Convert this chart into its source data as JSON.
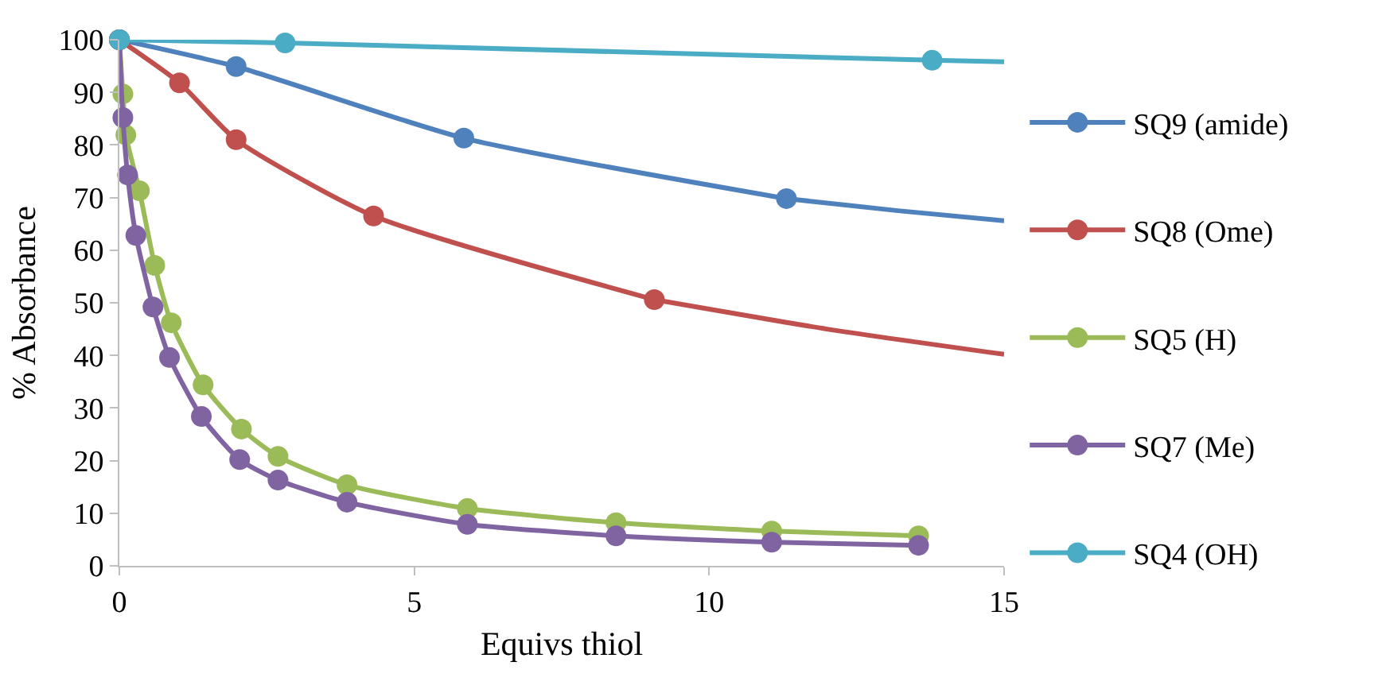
{
  "chart_data": {
    "type": "line",
    "xlabel": "Equivs thiol",
    "ylabel": "% Absorbance",
    "xlim": [
      0,
      15
    ],
    "xticks": [
      0,
      5,
      10,
      15
    ],
    "ylim": [
      0,
      100
    ],
    "yticks": [
      0,
      10,
      20,
      30,
      40,
      50,
      60,
      70,
      80,
      90,
      100
    ],
    "legend": "right",
    "marker": "circle",
    "line_style": "solid",
    "series": [
      {
        "name": "SQ9 (amide)",
        "color": "#4f81bd",
        "x": [
          0,
          1.98,
          5.84,
          11.31
        ],
        "values": [
          100,
          94.9,
          81.3,
          69.8
        ]
      },
      {
        "name": "SQ8 (Ome)",
        "color": "#c0504d",
        "x": [
          0,
          1.02,
          1.98,
          4.31,
          9.07
        ],
        "values": [
          100,
          91.8,
          81.0,
          66.5,
          50.6
        ]
      },
      {
        "name": "SQ5 (H)",
        "color": "#9bbb59",
        "x": [
          0,
          0.06,
          0.11,
          0.34,
          0.6,
          0.88,
          1.42,
          2.07,
          2.69,
          3.86,
          5.9,
          8.42,
          11.06,
          13.55
        ],
        "values": [
          100,
          89.7,
          81.9,
          71.3,
          57.1,
          46.2,
          34.4,
          26.0,
          20.8,
          15.4,
          10.9,
          8.2,
          6.6,
          5.7
        ]
      },
      {
        "name": "SQ7 (Me)",
        "color": "#8064a2",
        "x": [
          0,
          0.06,
          0.14,
          0.28,
          0.57,
          0.85,
          1.39,
          2.04,
          2.69,
          3.86,
          5.9,
          8.42,
          11.06,
          13.55
        ],
        "values": [
          100,
          85.2,
          74.3,
          62.8,
          49.2,
          39.6,
          28.4,
          20.2,
          16.3,
          12.1,
          7.9,
          5.7,
          4.5,
          3.9
        ]
      },
      {
        "name": "SQ4 (OH)",
        "color": "#4bacc6",
        "x": [
          0,
          2.81,
          13.78
        ],
        "values": [
          100,
          99.4,
          96.1
        ]
      },
      {
        "color": "#4f81bd",
        "marker": "none",
        "x": [
          11.31,
          13.2,
          15
        ],
        "values": [
          69.8,
          67.5,
          65.6
        ]
      },
      {
        "color": "#c0504d",
        "marker": "none",
        "x": [
          9.07,
          12,
          15
        ],
        "values": [
          50.6,
          45.0,
          40.2
        ]
      },
      {
        "color": "#4bacc6",
        "marker": "none",
        "x": [
          13.78,
          15
        ],
        "values": [
          96.1,
          95.8
        ]
      }
    ]
  }
}
